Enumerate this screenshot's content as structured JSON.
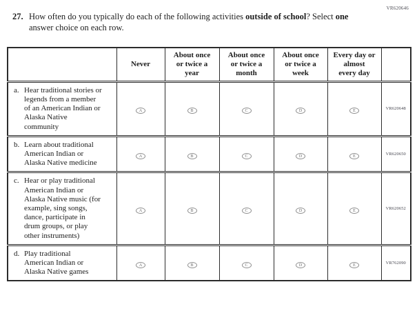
{
  "form_code": "VR620646",
  "question": {
    "number": "27.",
    "segments": [
      {
        "text": "How often do you typically do each of the following activities ",
        "bold": false
      },
      {
        "text": "outside of school",
        "bold": true
      },
      {
        "text": "? Select ",
        "bold": false
      },
      {
        "text": "one",
        "bold": true
      },
      {
        "text": " answer choice on each row.",
        "bold": false
      }
    ]
  },
  "table": {
    "columns": [
      "Never",
      "About once\nor twice a\nyear",
      "About once\nor twice a\nmonth",
      "About once\nor twice a\nweek",
      "Every day or\nalmost\nevery day"
    ],
    "option_letters": [
      "A",
      "B",
      "C",
      "D",
      "E"
    ],
    "rows": [
      {
        "label": "a.",
        "text": "Hear traditional stories or legends from a member of an American Indian or Alaska Native community",
        "code": "VR620648"
      },
      {
        "label": "b.",
        "text": "Learn about traditional American Indian or Alaska Native medicine",
        "code": "VR620650"
      },
      {
        "label": "c.",
        "text": "Hear or play traditional American Indian or Alaska Native music (for example, sing songs, dance, participate in drum groups, or play other instruments)",
        "code": "VR620652"
      },
      {
        "label": "d.",
        "text": "Play traditional American Indian or Alaska Native games",
        "code": "VR762090"
      }
    ]
  }
}
